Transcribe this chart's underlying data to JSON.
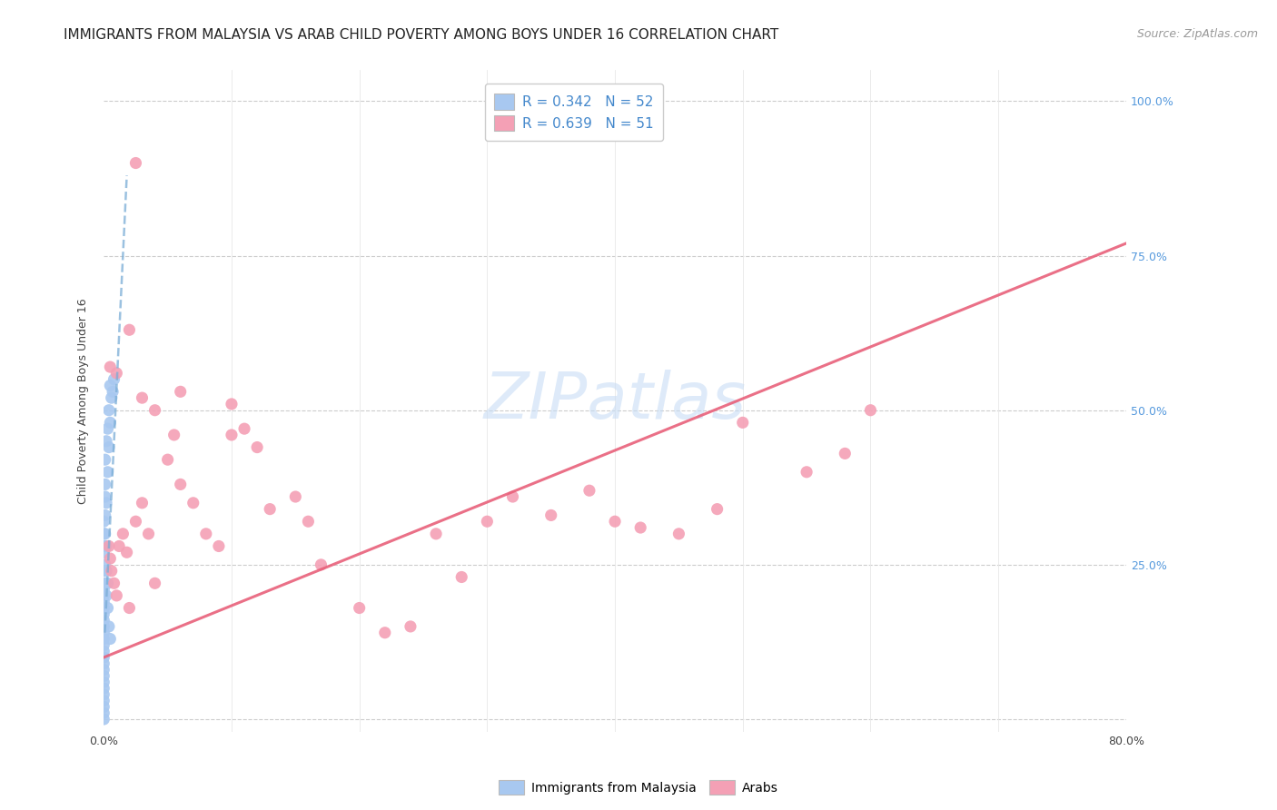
{
  "title": "IMMIGRANTS FROM MALAYSIA VS ARAB CHILD POVERTY AMONG BOYS UNDER 16 CORRELATION CHART",
  "source": "Source: ZipAtlas.com",
  "ylabel": "Child Poverty Among Boys Under 16",
  "xlim": [
    0.0,
    0.8
  ],
  "ylim": [
    -0.02,
    1.05
  ],
  "legend1_label": "R = 0.342   N = 52",
  "legend2_label": "R = 0.639   N = 51",
  "legend_bottom1": "Immigrants from Malaysia",
  "legend_bottom2": "Arabs",
  "watermark": "ZIPatlas",
  "blue_color": "#a8c8f0",
  "pink_color": "#f4a0b5",
  "blue_trend_color": "#7aadd6",
  "pink_trend_color": "#e8607a",
  "blue_scatter_x": [
    0.0,
    0.0,
    0.0,
    0.0,
    0.0,
    0.0,
    0.0,
    0.0,
    0.0,
    0.0,
    0.0,
    0.0,
    0.0,
    0.0,
    0.0,
    0.0,
    0.0,
    0.0,
    0.0,
    0.0,
    0.001,
    0.001,
    0.001,
    0.001,
    0.001,
    0.001,
    0.002,
    0.002,
    0.002,
    0.002,
    0.003,
    0.003,
    0.003,
    0.004,
    0.004,
    0.005,
    0.005,
    0.006,
    0.007,
    0.008,
    0.0,
    0.0,
    0.0,
    0.0,
    0.001,
    0.001,
    0.002,
    0.003,
    0.004,
    0.005,
    0.0,
    0.0
  ],
  "blue_scatter_y": [
    0.04,
    0.05,
    0.06,
    0.07,
    0.08,
    0.09,
    0.1,
    0.11,
    0.12,
    0.13,
    0.14,
    0.15,
    0.16,
    0.17,
    0.18,
    0.19,
    0.2,
    0.03,
    0.02,
    0.01,
    0.22,
    0.25,
    0.28,
    0.3,
    0.33,
    0.38,
    0.2,
    0.24,
    0.28,
    0.35,
    0.18,
    0.22,
    0.4,
    0.15,
    0.44,
    0.13,
    0.48,
    0.52,
    0.53,
    0.55,
    0.24,
    0.27,
    0.3,
    0.32,
    0.36,
    0.42,
    0.45,
    0.47,
    0.5,
    0.54,
    0.0,
    0.21
  ],
  "pink_scatter_x": [
    0.004,
    0.005,
    0.006,
    0.008,
    0.01,
    0.012,
    0.015,
    0.018,
    0.02,
    0.025,
    0.03,
    0.035,
    0.04,
    0.05,
    0.055,
    0.06,
    0.07,
    0.08,
    0.09,
    0.1,
    0.11,
    0.12,
    0.13,
    0.15,
    0.16,
    0.17,
    0.2,
    0.22,
    0.24,
    0.26,
    0.28,
    0.3,
    0.32,
    0.35,
    0.38,
    0.4,
    0.42,
    0.45,
    0.48,
    0.5,
    0.55,
    0.58,
    0.6,
    0.005,
    0.01,
    0.02,
    0.025,
    0.03,
    0.04,
    0.06,
    0.1
  ],
  "pink_scatter_y": [
    0.28,
    0.26,
    0.24,
    0.22,
    0.2,
    0.28,
    0.3,
    0.27,
    0.18,
    0.32,
    0.35,
    0.3,
    0.22,
    0.42,
    0.46,
    0.38,
    0.35,
    0.3,
    0.28,
    0.46,
    0.47,
    0.44,
    0.34,
    0.36,
    0.32,
    0.25,
    0.18,
    0.14,
    0.15,
    0.3,
    0.23,
    0.32,
    0.36,
    0.33,
    0.37,
    0.32,
    0.31,
    0.3,
    0.34,
    0.48,
    0.4,
    0.43,
    0.5,
    0.57,
    0.56,
    0.63,
    0.9,
    0.52,
    0.5,
    0.53,
    0.51
  ],
  "blue_trend_x": [
    0.0008,
    0.018
  ],
  "blue_trend_y": [
    0.14,
    0.88
  ],
  "pink_trend_x": [
    0.0,
    0.8
  ],
  "pink_trend_y": [
    0.1,
    0.77
  ],
  "title_fontsize": 11,
  "source_fontsize": 9,
  "tick_fontsize": 9,
  "label_fontsize": 9,
  "legend_fontsize": 11,
  "watermark_fontsize": 52
}
